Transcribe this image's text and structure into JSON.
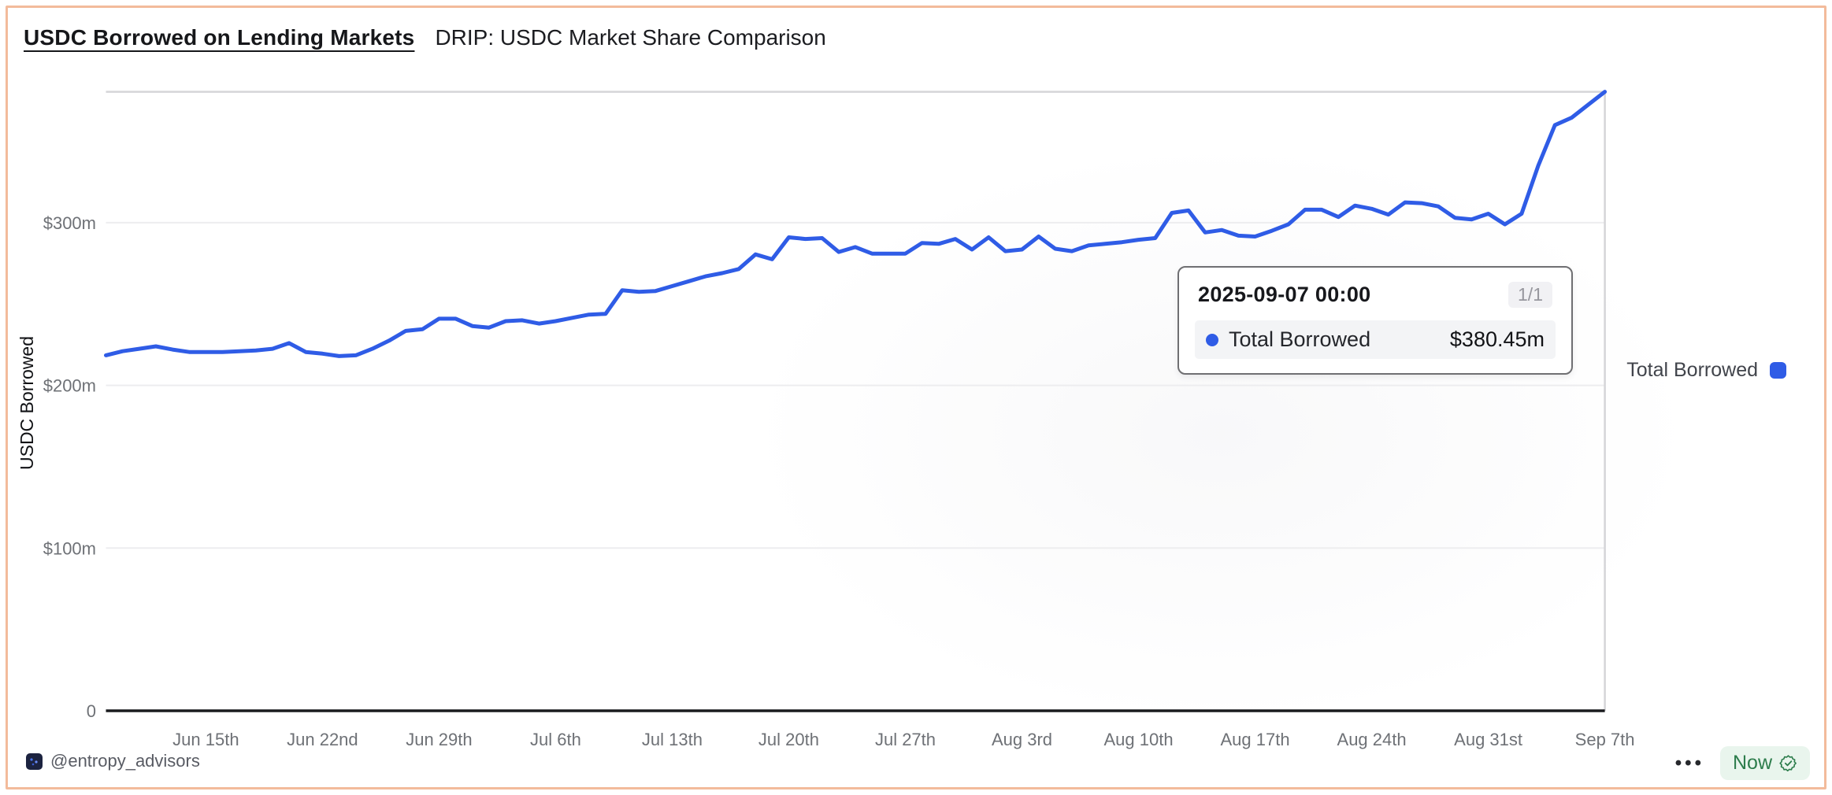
{
  "page": {
    "border_color": "#f3bb9b",
    "background": "#ffffff"
  },
  "header": {
    "title": "USDC Borrowed on Lending Markets",
    "subtitle": "DRIP: USDC Market Share Comparison"
  },
  "chart_data": {
    "type": "line",
    "title": "USDC Borrowed on Lending Markets",
    "xlabel": "",
    "ylabel": "USDC Borrowed",
    "ylim": [
      0,
      390
    ],
    "grid": "horizontal",
    "legend_position": "right",
    "line_color": "#2f5ce6",
    "x": [
      "2025-06-09",
      "2025-06-10",
      "2025-06-11",
      "2025-06-12",
      "2025-06-13",
      "2025-06-14",
      "2025-06-15",
      "2025-06-16",
      "2025-06-17",
      "2025-06-18",
      "2025-06-19",
      "2025-06-20",
      "2025-06-21",
      "2025-06-22",
      "2025-06-23",
      "2025-06-24",
      "2025-06-25",
      "2025-06-26",
      "2025-06-27",
      "2025-06-28",
      "2025-06-29",
      "2025-06-30",
      "2025-07-01",
      "2025-07-02",
      "2025-07-03",
      "2025-07-04",
      "2025-07-05",
      "2025-07-06",
      "2025-07-07",
      "2025-07-08",
      "2025-07-09",
      "2025-07-10",
      "2025-07-11",
      "2025-07-12",
      "2025-07-13",
      "2025-07-14",
      "2025-07-15",
      "2025-07-16",
      "2025-07-17",
      "2025-07-18",
      "2025-07-19",
      "2025-07-20",
      "2025-07-21",
      "2025-07-22",
      "2025-07-23",
      "2025-07-24",
      "2025-07-25",
      "2025-07-26",
      "2025-07-27",
      "2025-07-28",
      "2025-07-29",
      "2025-07-30",
      "2025-07-31",
      "2025-08-01",
      "2025-08-02",
      "2025-08-03",
      "2025-08-04",
      "2025-08-05",
      "2025-08-06",
      "2025-08-07",
      "2025-08-08",
      "2025-08-09",
      "2025-08-10",
      "2025-08-11",
      "2025-08-12",
      "2025-08-13",
      "2025-08-14",
      "2025-08-15",
      "2025-08-16",
      "2025-08-17",
      "2025-08-18",
      "2025-08-19",
      "2025-08-20",
      "2025-08-21",
      "2025-08-22",
      "2025-08-23",
      "2025-08-24",
      "2025-08-25",
      "2025-08-26",
      "2025-08-27",
      "2025-08-28",
      "2025-08-29",
      "2025-08-30",
      "2025-08-31",
      "2025-09-01",
      "2025-09-02",
      "2025-09-03",
      "2025-09-04",
      "2025-09-05",
      "2025-09-06",
      "2025-09-07"
    ],
    "series": [
      {
        "name": "Total Borrowed",
        "unit_millions_usd": true,
        "values": [
          218.5,
          221,
          222.5,
          224,
          222,
          220.5,
          220.5,
          220.5,
          221,
          221.5,
          222.5,
          226,
          220.5,
          219.5,
          218,
          218.5,
          222.5,
          227.5,
          233.5,
          234.5,
          241,
          241,
          236.5,
          235.5,
          239.5,
          240,
          238,
          239.5,
          241.5,
          243.5,
          244,
          258.5,
          257.5,
          258,
          261,
          264,
          267,
          269,
          271.5,
          280.5,
          277.5,
          291,
          290,
          290.5,
          282,
          285,
          281,
          281,
          281,
          287.5,
          287,
          290,
          283.5,
          291,
          282.5,
          283.5,
          291.5,
          284,
          282.5,
          286,
          287,
          288,
          289.5,
          290.5,
          306,
          307.5,
          294,
          295.5,
          292,
          291.5,
          295,
          299,
          308,
          308,
          303.5,
          310.5,
          308.5,
          305,
          312.5,
          312,
          310,
          303,
          302,
          305.5,
          299,
          305.5,
          335,
          360,
          364.5,
          372.5,
          380.45
        ]
      }
    ],
    "y_ticks": [
      {
        "value": 0,
        "label": "0"
      },
      {
        "value": 100,
        "label": "$100m"
      },
      {
        "value": 200,
        "label": "$200m"
      },
      {
        "value": 300,
        "label": "$300m"
      }
    ],
    "x_tick_indices": [
      6,
      13,
      20,
      27,
      34,
      41,
      48,
      55,
      62,
      69,
      76,
      83,
      90
    ],
    "x_tick_labels": [
      "Jun 15th",
      "Jun 22nd",
      "Jun 29th",
      "Jul 6th",
      "Jul 13th",
      "Jul 20th",
      "Jul 27th",
      "Aug 3rd",
      "Aug 10th",
      "Aug 17th",
      "Aug 24th",
      "Aug 31st",
      "Sep 7th"
    ],
    "hover": {
      "index": 90,
      "value": 380.45,
      "crosshair": true
    }
  },
  "tooltip": {
    "title": "2025-09-07 00:00",
    "badge": "1/1",
    "rows": [
      {
        "label": "Total Borrowed",
        "value": "$380.45m",
        "color": "#2f5ce6"
      }
    ]
  },
  "legend": {
    "label": "Total Borrowed",
    "color": "#2f5ce6"
  },
  "footer": {
    "handle": "@entropy_advisors",
    "menu": "•••",
    "status": "Now"
  },
  "colors": {
    "accent_blue": "#2f5ce6",
    "grid": "#ededef",
    "crosshair": "#d5d5d8",
    "axis": "#1a1b1e",
    "tick_text": "#6e7176",
    "status_green": "#2d7d4c",
    "status_green_bg": "#e9f5ed"
  }
}
